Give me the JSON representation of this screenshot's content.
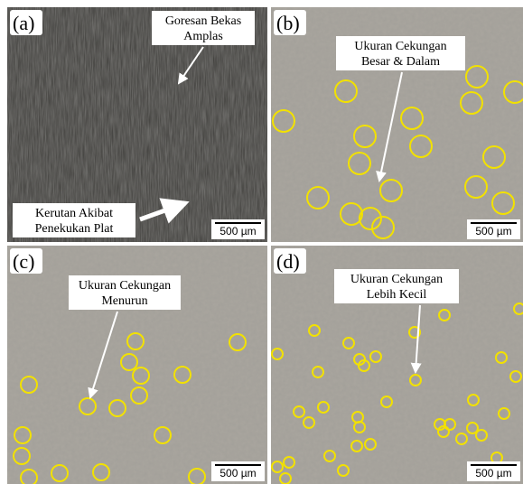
{
  "panels": [
    {
      "label": "(a)",
      "annotations": [
        {
          "lines": [
            "Goresan Bekas",
            "Amplas"
          ]
        },
        {
          "lines": [
            "Kerutan Akibat",
            "Penekukan Plat"
          ]
        }
      ],
      "scale_bar": "500 µm"
    },
    {
      "label": "(b)",
      "annotations": [
        {
          "lines": [
            "Ukuran Cekungan",
            "Besar & Dalam"
          ]
        }
      ],
      "scale_bar": "500 µm"
    },
    {
      "label": "(c)",
      "annotations": [
        {
          "lines": [
            "Ukuran Cekungan",
            "Menurun"
          ]
        }
      ],
      "scale_bar": "500 µm"
    },
    {
      "label": "(d)",
      "annotations": [
        {
          "lines": [
            "Ukuran Cekungan",
            "Lebih Kecil"
          ]
        }
      ],
      "scale_bar": "500 µm"
    }
  ]
}
